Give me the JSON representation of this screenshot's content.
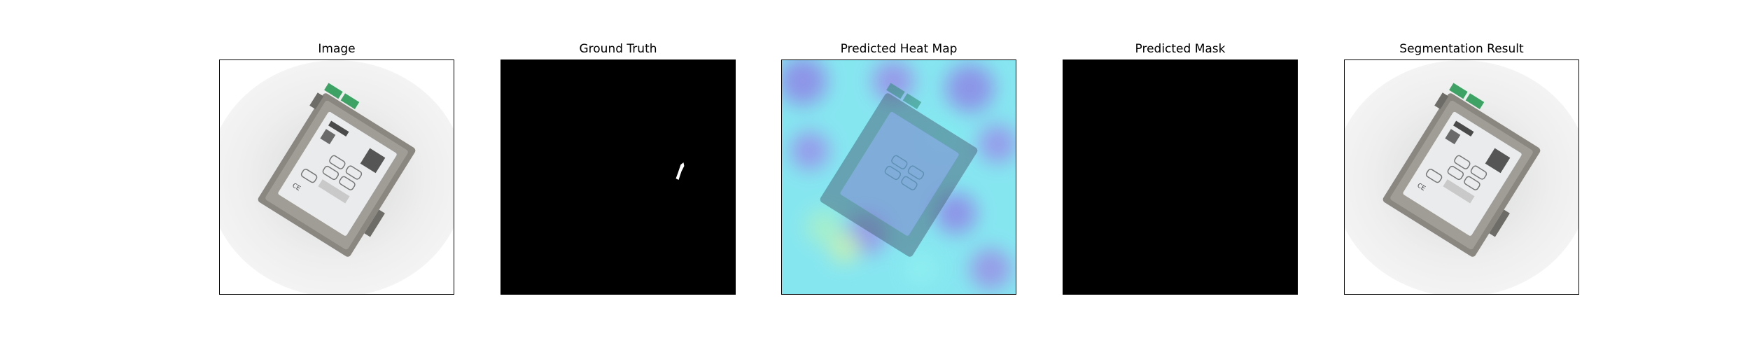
{
  "figure": {
    "panels": [
      {
        "id": "image",
        "title": "Image",
        "kind": "photo"
      },
      {
        "id": "ground-truth",
        "title": "Ground Truth",
        "kind": "mask"
      },
      {
        "id": "heat-map",
        "title": "Predicted Heat Map",
        "kind": "heatmap"
      },
      {
        "id": "predicted-mask",
        "title": "Predicted Mask",
        "kind": "empty-mask"
      },
      {
        "id": "segmentation",
        "title": "Segmentation Result",
        "kind": "photo"
      }
    ],
    "colors": {
      "background": "#ffffff",
      "frame": "#000000",
      "mask_background": "#000000",
      "mask_foreground": "#ffffff",
      "heat_low": "#7ff0f0",
      "heat_mid": "#7fd8ee",
      "heat_high": "#8c7fe0",
      "device_body": "#8a8780",
      "device_label": "#e9ebec",
      "terminal_green": "#3da264"
    },
    "icons": {
      "photo": "industrial-device-photo",
      "mask": "defect-mask",
      "heatmap": "anomaly-heatmap"
    }
  }
}
